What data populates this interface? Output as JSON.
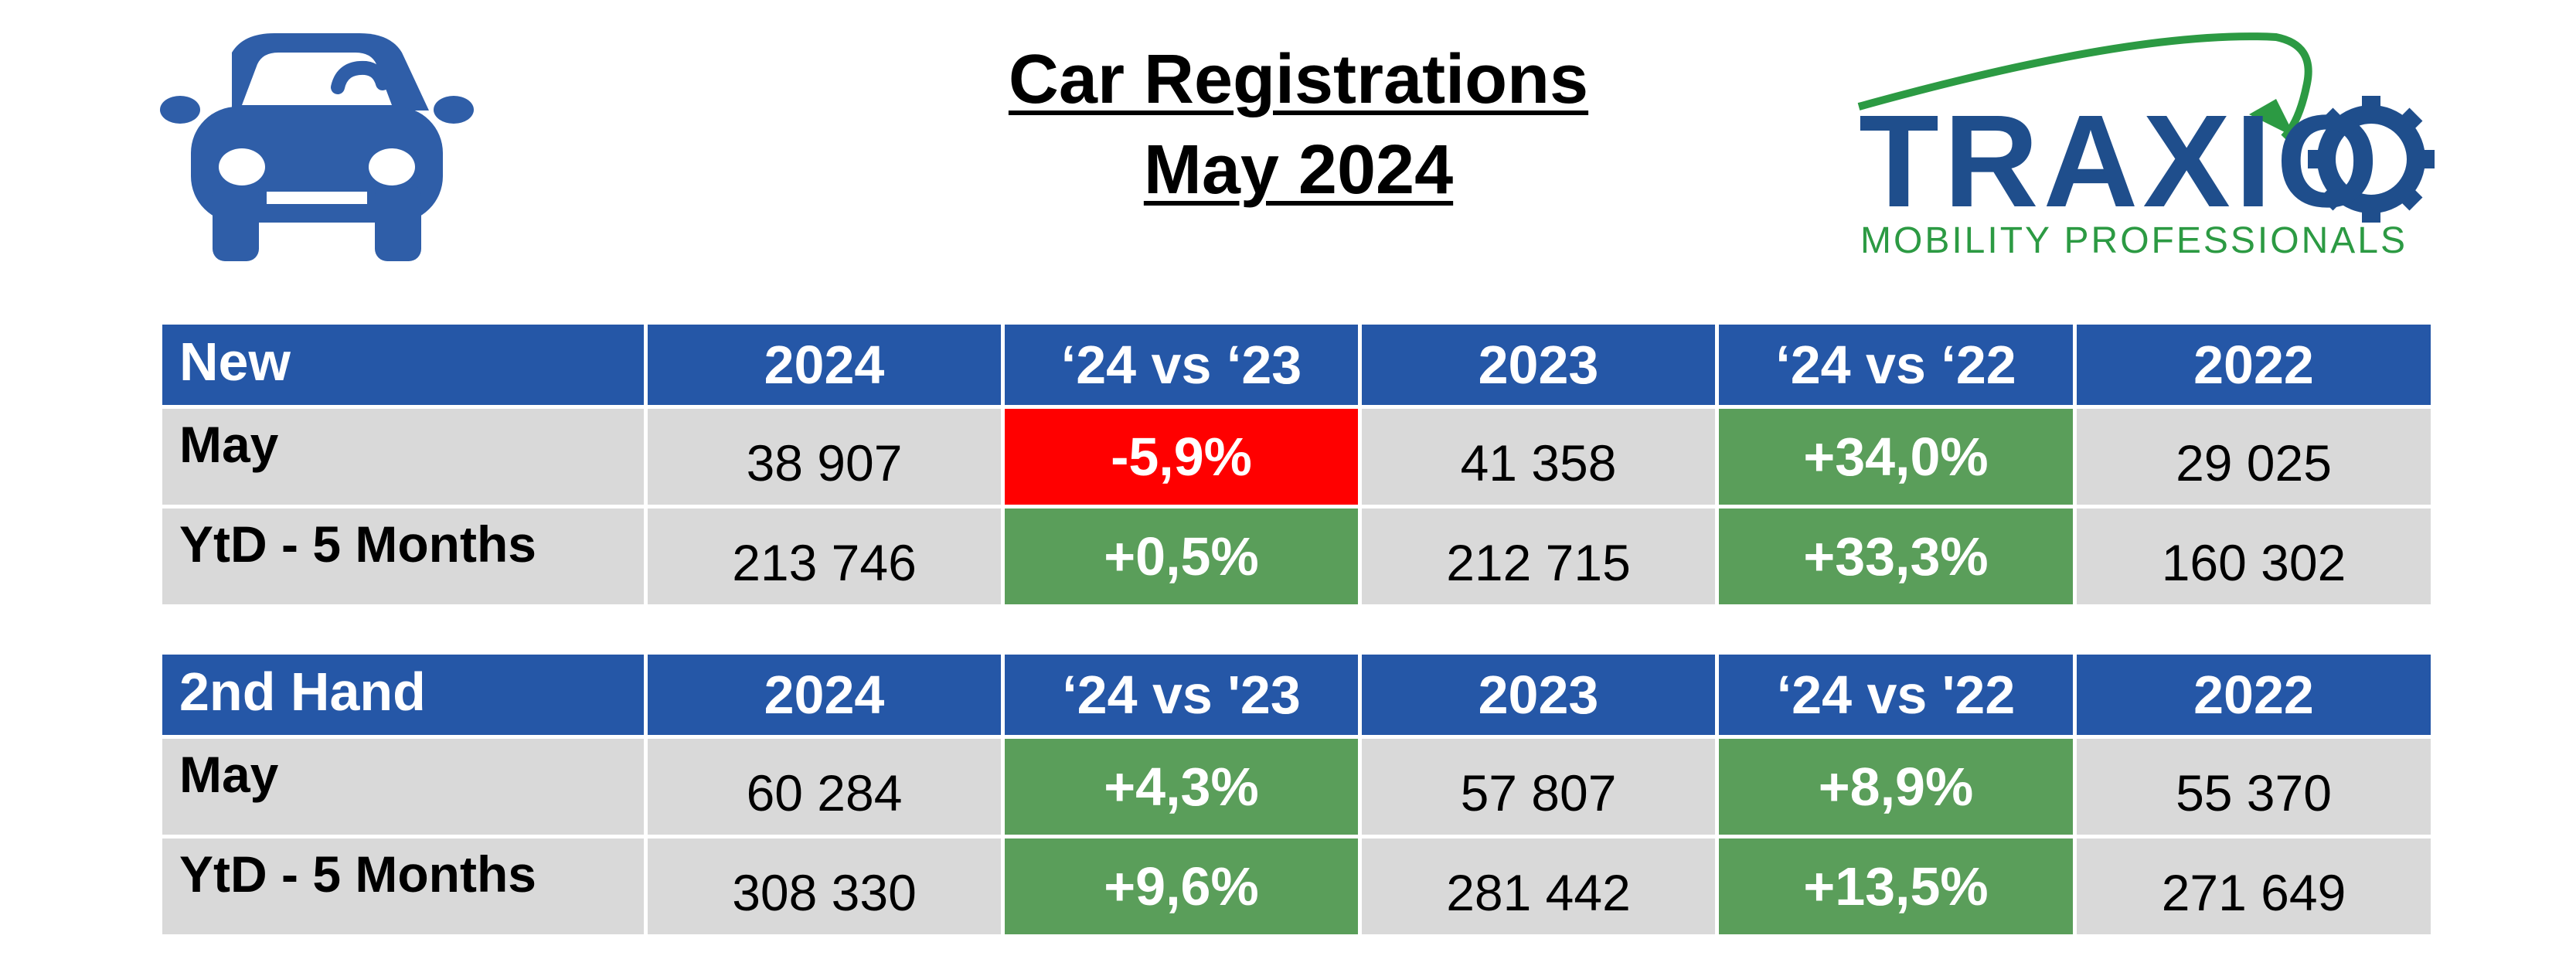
{
  "header": {
    "title_line1": "Car Registrations",
    "title_line2": "May 2024"
  },
  "icons": {
    "car": "car-icon"
  },
  "logo": {
    "word": "TRAXIO",
    "tagline": "MOBILITY PROFESSIONALS",
    "colors": {
      "primary": "#1f4e8c",
      "accent": "#2c9a43"
    }
  },
  "colors": {
    "header_bg": "#2557a7",
    "row_bg": "#d9d9d9",
    "positive": "#5a9e5a",
    "negative": "#ff0000"
  },
  "tables": [
    {
      "headers": [
        "New",
        "2024",
        "‘24 vs ‘23",
        "2023",
        "‘24 vs ‘22",
        "2022"
      ],
      "rows": [
        {
          "label": "May",
          "v2024": "38 907",
          "vs23": "-5,9%",
          "v2023": "41 358",
          "vs22": "+34,0%",
          "v2022": "29 025"
        },
        {
          "label": "YtD - 5 Months",
          "v2024": "213 746",
          "vs23": "+0,5%",
          "v2023": "212 715",
          "vs22": "+33,3%",
          "v2022": "160 302"
        }
      ]
    },
    {
      "headers": [
        "2nd Hand",
        "2024",
        "‘24 vs '23",
        "2023",
        "‘24 vs '22",
        "2022"
      ],
      "rows": [
        {
          "label": "May",
          "v2024": "60 284",
          "vs23": "+4,3%",
          "v2023": "57 807",
          "vs22": "+8,9%",
          "v2022": "55 370"
        },
        {
          "label": "YtD - 5 Months",
          "v2024": "308 330",
          "vs23": "+9,6%",
          "v2023": "281 442",
          "vs22": "+13,5%",
          "v2022": "271 649"
        }
      ]
    }
  ]
}
